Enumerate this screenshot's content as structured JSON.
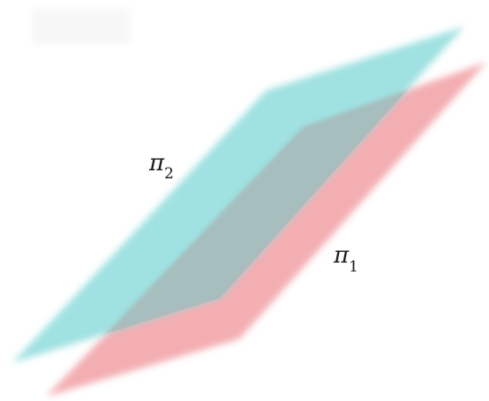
{
  "planes": {
    "pi2": {
      "symbol": "π",
      "subscript": "2",
      "color": "#8fdcdc"
    },
    "pi1": {
      "symbol": "π",
      "subscript": "1",
      "color": "#f1a0a4"
    }
  },
  "colors": {
    "background": "#ffffff",
    "overlap": "#a9b5b5"
  }
}
